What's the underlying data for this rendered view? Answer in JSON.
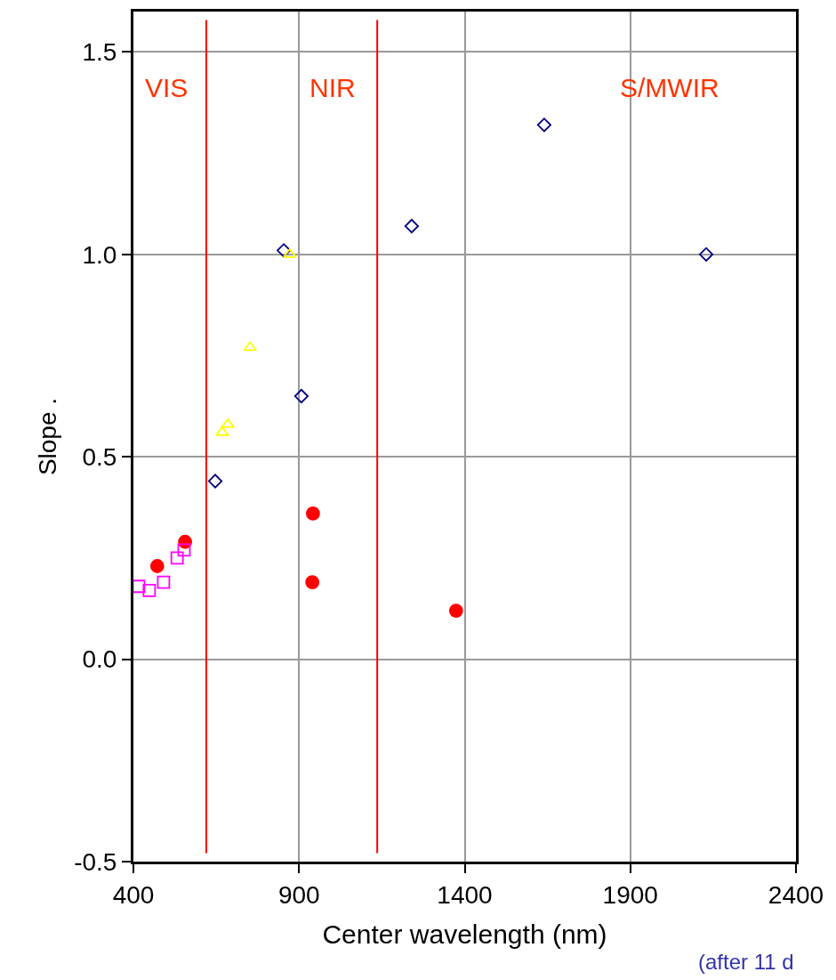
{
  "chart_data": {
    "type": "scatter",
    "xlabel": "Center wavelength (nm)",
    "ylabel": "Slope .",
    "xlim": [
      400,
      2400
    ],
    "xticks": [
      400,
      900,
      1400,
      1900,
      2400
    ],
    "ylim": [
      -0.5,
      1.6
    ],
    "yticks": [
      -0.5,
      {
        "value": 0,
        "label": "0.0"
      },
      0.5,
      {
        "value": 1,
        "label": "1.0"
      },
      1.5
    ],
    "grid": true,
    "series": [
      {
        "color": "#000080",
        "marker": "diamond",
        "x": [
          647,
          854,
          907,
          1240,
          1640,
          2129
        ],
        "values": [
          0.44,
          1.01,
          0.65,
          1.07,
          1.32,
          1.0
        ]
      },
      {
        "color": "#ffff00",
        "marker": "triangle",
        "x": [
          872,
          752,
          685,
          668
        ],
        "values": [
          1.0,
          0.77,
          0.58,
          0.56
        ]
      },
      {
        "color": "#ff0000",
        "marker": "circle",
        "x": [
          472,
          556,
          942,
          940,
          1374
        ],
        "values": [
          0.23,
          0.29,
          0.36,
          0.19,
          0.12
        ]
      },
      {
        "color": "#ff00ff",
        "marker": "square",
        "x": [
          416,
          448,
          491,
          532,
          553
        ],
        "values": [
          0.18,
          0.17,
          0.19,
          0.25,
          0.27
        ]
      }
    ],
    "ref_lines": [
      {
        "axis": "x",
        "value": 620,
        "color": "#ff0000"
      },
      {
        "axis": "x",
        "value": 1136,
        "color": "#ff0000"
      }
    ],
    "annotations": [
      "VIS",
      "NIR",
      "S/MWIR",
      "(after 11 d"
    ]
  }
}
